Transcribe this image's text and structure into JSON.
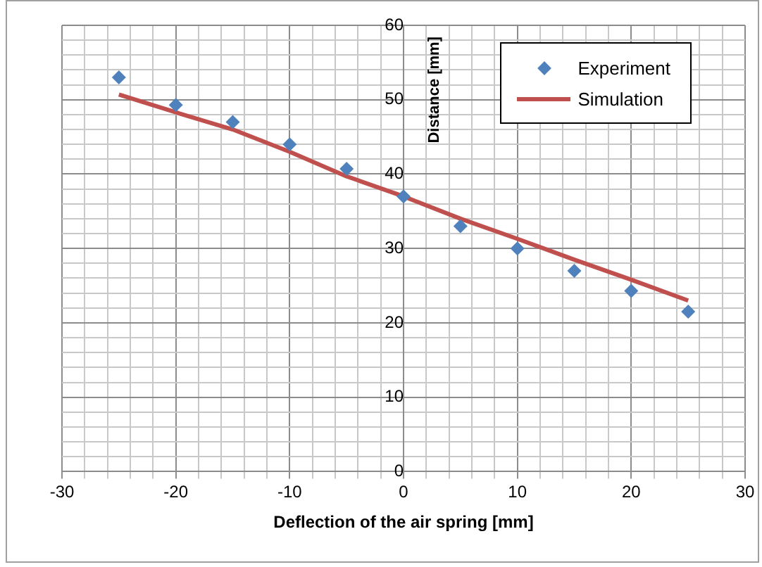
{
  "chart_data": {
    "type": "scatter",
    "xlabel": "Deflection of the air spring [mm]",
    "ylabel": "Distance [mm]",
    "xlim": [
      -30,
      30
    ],
    "ylim": [
      0,
      60
    ],
    "xticks": [
      -30,
      {
        "value": -28,
        "label": null
      },
      {
        "value": -26,
        "label": null
      },
      {
        "value": -24,
        "label": null
      },
      {
        "value": -22,
        "label": null
      },
      -20,
      {
        "value": -18,
        "label": null
      },
      {
        "value": -16,
        "label": null
      },
      {
        "value": -14,
        "label": null
      },
      {
        "value": -12,
        "label": null
      },
      -10,
      {
        "value": -8,
        "label": null
      },
      {
        "value": -6,
        "label": null
      },
      {
        "value": -4,
        "label": null
      },
      {
        "value": -2,
        "label": null
      },
      0,
      {
        "value": 2,
        "label": null
      },
      {
        "value": 4,
        "label": null
      },
      {
        "value": 6,
        "label": null
      },
      {
        "value": 8,
        "label": null
      },
      10,
      {
        "value": 12,
        "label": null
      },
      {
        "value": 14,
        "label": null
      },
      {
        "value": 16,
        "label": null
      },
      {
        "value": 18,
        "label": null
      },
      20,
      {
        "value": 22,
        "label": null
      },
      {
        "value": 24,
        "label": null
      },
      {
        "value": 26,
        "label": null
      },
      {
        "value": 28,
        "label": null
      },
      30
    ],
    "yticks": [
      0,
      {
        "value": 2,
        "label": null
      },
      {
        "value": 4,
        "label": null
      },
      {
        "value": 6,
        "label": null
      },
      {
        "value": 8,
        "label": null
      },
      10,
      {
        "value": 12,
        "label": null
      },
      {
        "value": 14,
        "label": null
      },
      {
        "value": 16,
        "label": null
      },
      {
        "value": 18,
        "label": null
      },
      20,
      {
        "value": 22,
        "label": null
      },
      {
        "value": 24,
        "label": null
      },
      {
        "value": 26,
        "label": null
      },
      {
        "value": 28,
        "label": null
      },
      30,
      {
        "value": 32,
        "label": null
      },
      {
        "value": 34,
        "label": null
      },
      {
        "value": 36,
        "label": null
      },
      {
        "value": 38,
        "label": null
      },
      40,
      {
        "value": 42,
        "label": null
      },
      {
        "value": 44,
        "label": null
      },
      {
        "value": 46,
        "label": null
      },
      {
        "value": 48,
        "label": null
      },
      50,
      {
        "value": 52,
        "label": null
      },
      {
        "value": 54,
        "label": null
      },
      {
        "value": 56,
        "label": null
      },
      {
        "value": 58,
        "label": null
      },
      60
    ],
    "grid": true,
    "legend": "top right",
    "series": [
      {
        "name": "Experiment",
        "marker": "diamond",
        "color": "#4f81bd",
        "x": [
          -25,
          -20,
          -15,
          -10,
          -5,
          0,
          5,
          10,
          15,
          20,
          25
        ],
        "values": [
          53,
          49.3,
          47,
          44,
          40.7,
          37,
          33,
          30,
          27,
          24.3,
          21.5
        ]
      },
      {
        "name": "Simulation",
        "type": "line",
        "marker": "none",
        "color": "#c0504d",
        "x": [
          -25,
          -20,
          -15,
          -10,
          -5,
          0,
          5,
          10,
          15,
          20,
          25
        ],
        "values": [
          50.7,
          48.3,
          46,
          43,
          39.7,
          37,
          34,
          31.3,
          28.5,
          25.8,
          23
        ]
      }
    ]
  }
}
